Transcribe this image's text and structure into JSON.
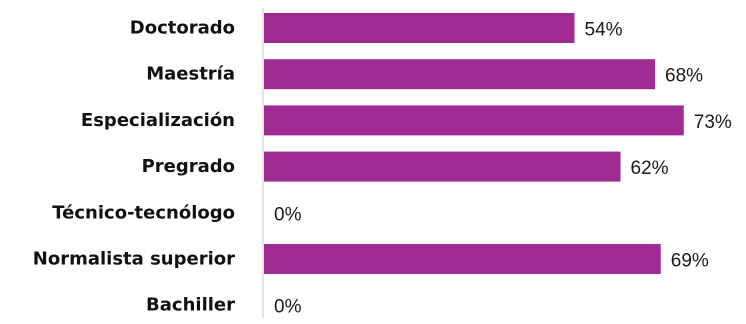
{
  "chart_data": {
    "type": "bar",
    "orientation": "horizontal",
    "categories": [
      "Doctorado",
      "Maestría",
      "Especialización",
      "Pregrado",
      "Técnico-tecnólogo",
      "Normalista superior",
      "Bachiller"
    ],
    "values": [
      54,
      68,
      73,
      62,
      0,
      69,
      0
    ],
    "data_labels": [
      "54%",
      "68%",
      "73%",
      "62%",
      "0%",
      "69%",
      "0%"
    ],
    "value_unit": "%",
    "title": "",
    "xlabel": "",
    "ylabel": "",
    "xlim": [
      0,
      73
    ],
    "grid": false,
    "legend": "none",
    "bar_color": "#A02B93",
    "axis_color": "#D9D9D9"
  }
}
